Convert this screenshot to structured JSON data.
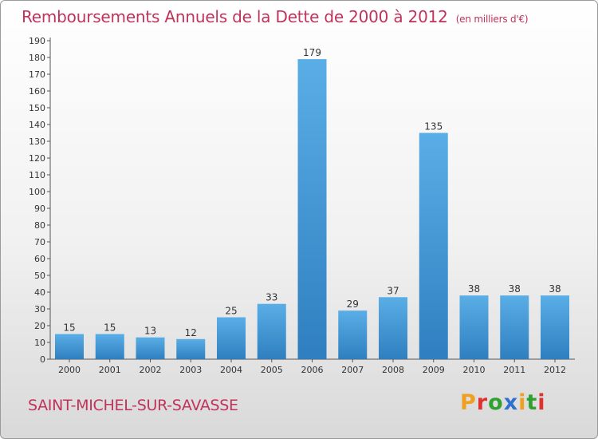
{
  "header": {
    "title": "Remboursements Annuels de la Dette de 2000 à 2012",
    "unit": "(en milliers d'€)"
  },
  "footer": {
    "town": "SAINT-MICHEL-SUR-SAVASSE",
    "logo": "Proxiti"
  },
  "colors": {
    "title": "#c0335b",
    "bar_light": "#5aaee6",
    "bar_dark": "#2f7fc0",
    "logo": [
      "#f0a020",
      "#e03030",
      "#30a030",
      "#3070d0",
      "#f0a020",
      "#30a030",
      "#e03030"
    ]
  },
  "chart_data": {
    "type": "bar",
    "title": "Remboursements Annuels de la Dette de 2000 à 2012",
    "subtitle": "(en milliers d'€)",
    "xlabel": "",
    "ylabel": "",
    "categories": [
      "2000",
      "2001",
      "2002",
      "2003",
      "2004",
      "2005",
      "2006",
      "2007",
      "2008",
      "2009",
      "2010",
      "2011",
      "2012"
    ],
    "values": [
      15,
      15,
      13,
      12,
      25,
      33,
      179,
      29,
      37,
      135,
      38,
      38,
      38
    ],
    "ylim": [
      0,
      190
    ],
    "ytick_step": 10,
    "grid": false,
    "legend": "none"
  }
}
